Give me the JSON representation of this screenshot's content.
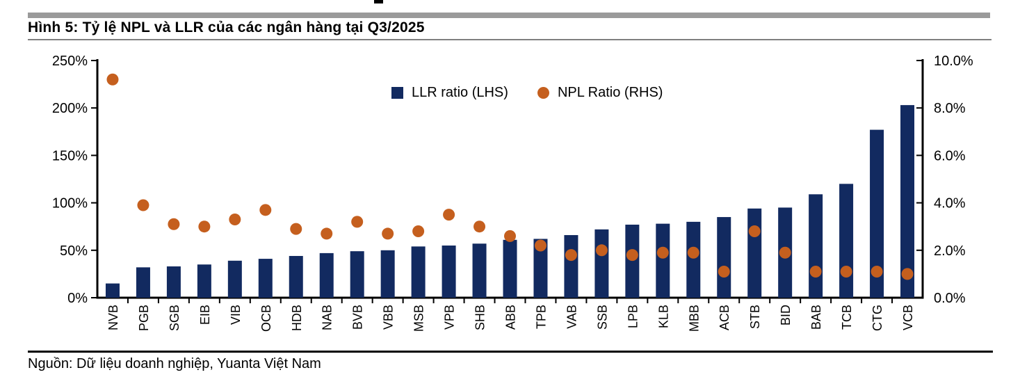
{
  "page": {
    "title": "Hình 5: Tỷ lệ NPL và LLR của các ngân hàng tại Q3/2025",
    "source": "Nguồn: Dữ liệu doanh nghiệp, Yuanta Việt Nam"
  },
  "legend": {
    "llr_label": "LLR ratio (LHS)",
    "npl_label": "NPL Ratio (RHS)"
  },
  "colors": {
    "bar_navy": "#122A60",
    "dot_orange": "#C55F1E",
    "separator_gray": "#9A9A9A",
    "title_rule_gray": "#7F7F7F",
    "axis_black": "#000000"
  },
  "chart_data": {
    "type": "bar",
    "title": "Hình 5: Tỷ lệ NPL và LLR của các ngân hàng tại Q3/2025",
    "categories": [
      "NVB",
      "PGB",
      "SGB",
      "EIB",
      "VIB",
      "OCB",
      "HDB",
      "NAB",
      "BVB",
      "VBB",
      "MSB",
      "VPB",
      "SHB",
      "ABB",
      "TPB",
      "VAB",
      "SSB",
      "LPB",
      "KLB",
      "MBB",
      "ACB",
      "STB",
      "BID",
      "BAB",
      "TCB",
      "CTG",
      "VCB"
    ],
    "series": [
      {
        "name": "LLR ratio (LHS)",
        "type": "bar",
        "axis": "left",
        "unit": "%",
        "color": "#122A60",
        "values": [
          15,
          32,
          33,
          35,
          39,
          41,
          44,
          47,
          49,
          50,
          54,
          55,
          57,
          61,
          62,
          66,
          72,
          77,
          78,
          80,
          85,
          94,
          95,
          109,
          120,
          177,
          203
        ]
      },
      {
        "name": "NPL Ratio (RHS)",
        "type": "scatter",
        "axis": "right",
        "unit": "%",
        "color": "#C55F1E",
        "values": [
          9.2,
          3.9,
          3.1,
          3.0,
          3.3,
          3.7,
          2.9,
          2.7,
          3.2,
          2.7,
          2.8,
          3.5,
          3.0,
          2.6,
          2.2,
          1.8,
          2.0,
          1.8,
          1.9,
          1.9,
          1.1,
          2.8,
          1.9,
          1.1,
          1.1,
          1.1,
          1.0
        ]
      }
    ],
    "left_axis": {
      "min": 0,
      "max": 250,
      "tick_step": 50,
      "tick_labels": [
        "0%",
        "50%",
        "100%",
        "150%",
        "200%",
        "250%"
      ]
    },
    "right_axis": {
      "min": 0,
      "max": 10,
      "tick_step": 2,
      "tick_labels": [
        "0.0%",
        "2.0%",
        "4.0%",
        "6.0%",
        "8.0%",
        "10.0%"
      ]
    },
    "legend_position": "top-center",
    "grid": false
  }
}
